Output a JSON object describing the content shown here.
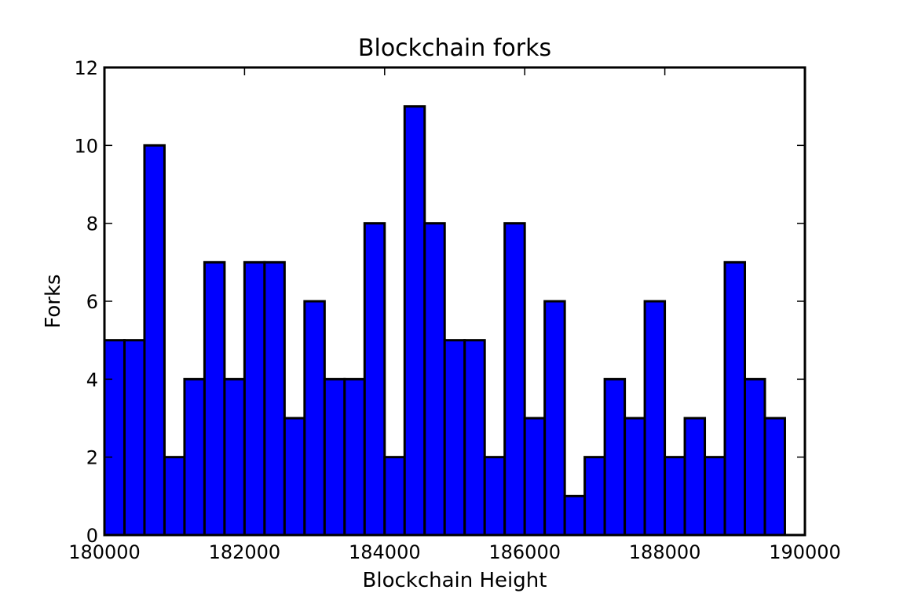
{
  "chart_data": {
    "type": "bar",
    "title": "Blockchain forks",
    "xlabel": "Blockchain Height",
    "ylabel": "Forks",
    "xlim": [
      180000,
      190000
    ],
    "ylim": [
      0,
      12
    ],
    "xticks": [
      180000,
      182000,
      184000,
      186000,
      188000,
      190000
    ],
    "xtick_labels": [
      "180000",
      "182000",
      "184000",
      "186000",
      "188000",
      "190000"
    ],
    "yticks": [
      0,
      2,
      4,
      6,
      8,
      10,
      12
    ],
    "ytick_labels": [
      "0",
      "2",
      "4",
      "6",
      "8",
      "10",
      "12"
    ],
    "bin_start": 180000,
    "bin_width": 285.7,
    "values": [
      5,
      5,
      10,
      2,
      4,
      7,
      4,
      7,
      7,
      3,
      6,
      4,
      4,
      8,
      2,
      11,
      8,
      5,
      5,
      2,
      8,
      3,
      6,
      1,
      2,
      4,
      3,
      6,
      2,
      3,
      2,
      7,
      4,
      3,
      0
    ],
    "bar_color": "#0000ff",
    "edge_color": "#000000",
    "grid": false
  }
}
